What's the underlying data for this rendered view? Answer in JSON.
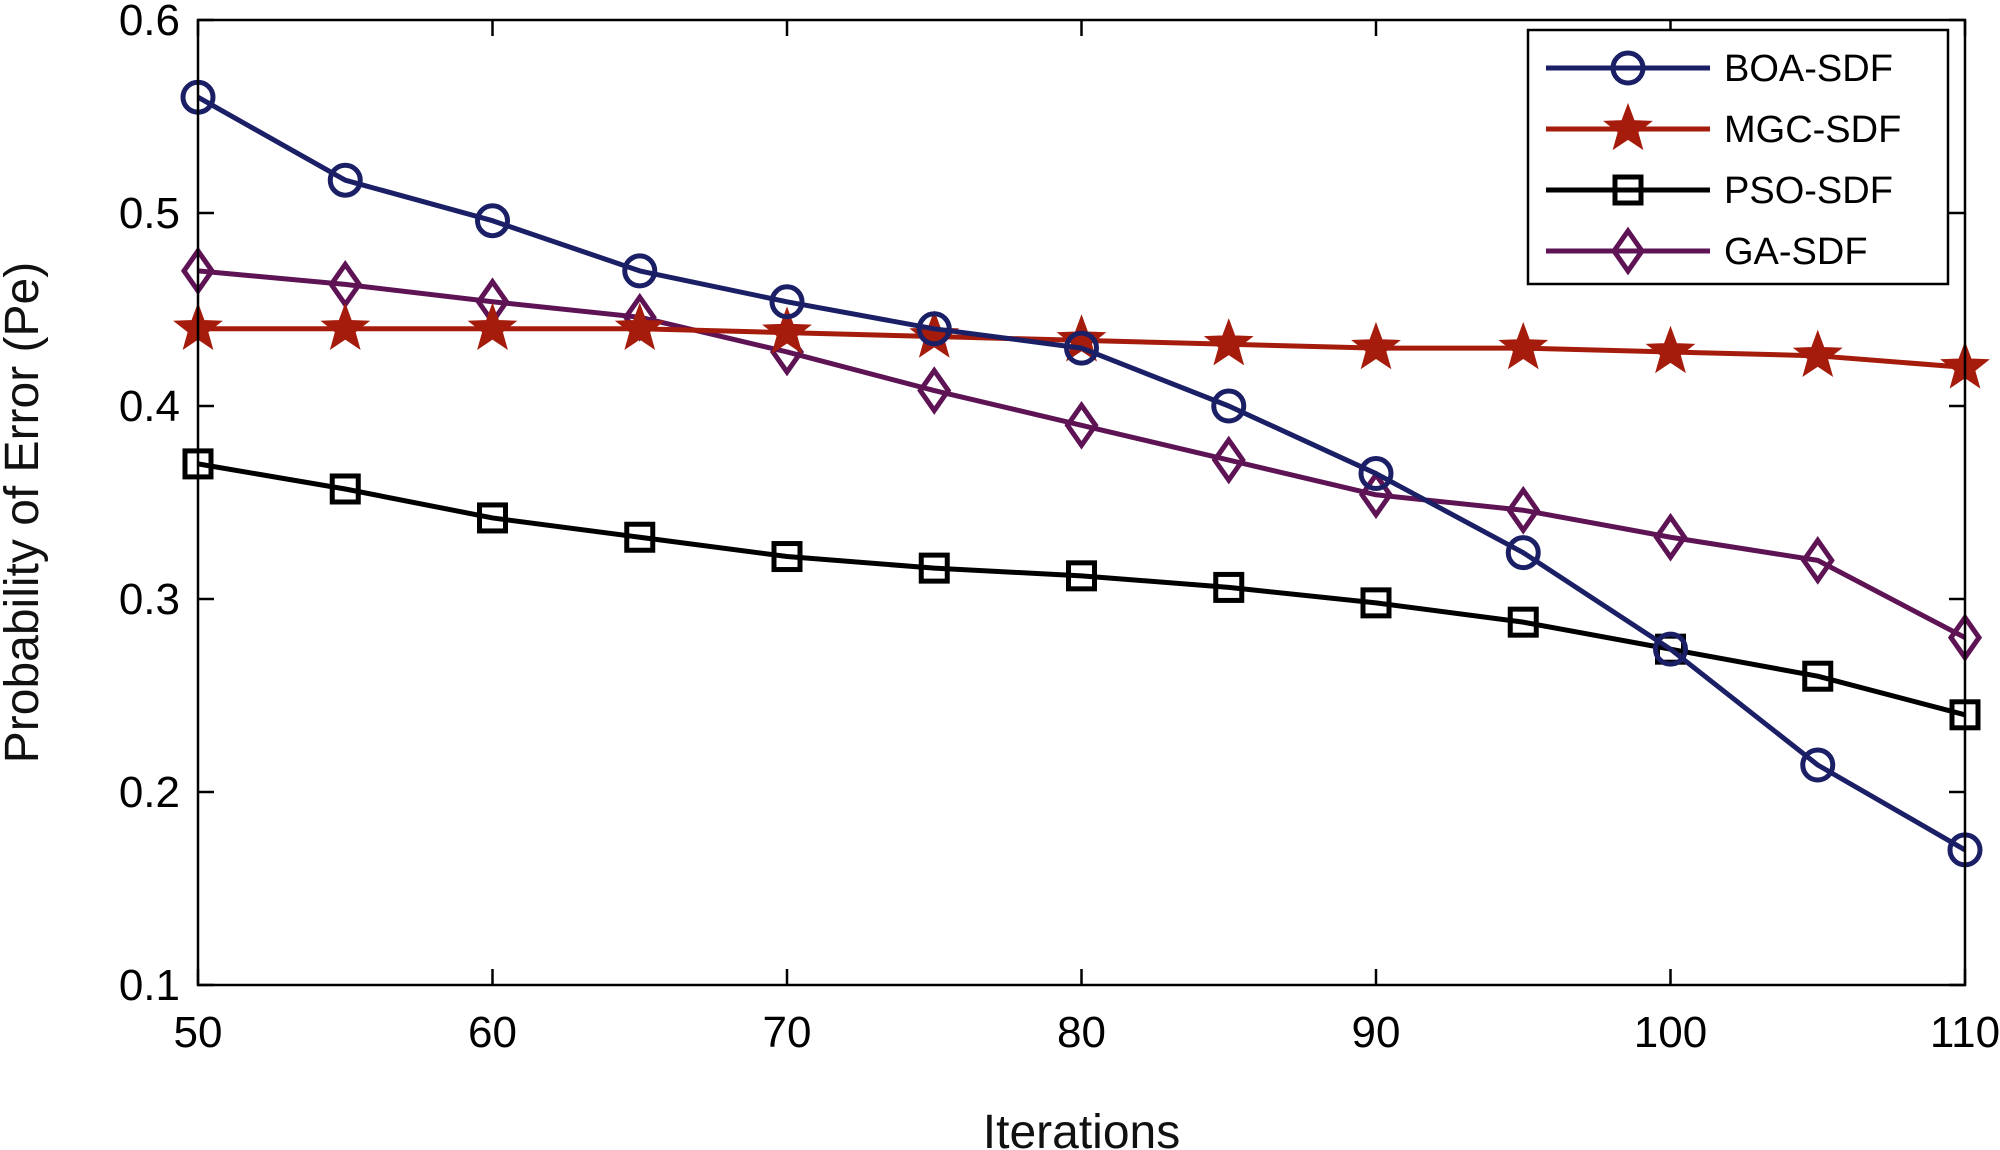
{
  "chart_data": {
    "type": "line",
    "title": "",
    "xlabel": "Iterations",
    "ylabel": "Probability of Error (Pe)",
    "xlim": [
      50,
      110
    ],
    "ylim": [
      0.1,
      0.6
    ],
    "x_ticks": [
      "50",
      "60",
      "70",
      "80",
      "90",
      "100",
      "110"
    ],
    "y_ticks": [
      "0.1",
      "0.2",
      "0.3",
      "0.4",
      "0.5",
      "0.6"
    ],
    "grid": false,
    "legend_position": "top-right",
    "x": [
      50,
      55,
      60,
      65,
      70,
      75,
      80,
      85,
      90,
      95,
      100,
      105,
      110
    ],
    "series": [
      {
        "name": "BOA-SDF",
        "color": "#1a1f66",
        "marker": "circle",
        "values": [
          0.56,
          0.517,
          0.496,
          0.47,
          0.454,
          0.44,
          0.43,
          0.4,
          0.365,
          0.324,
          0.274,
          0.214,
          0.17
        ]
      },
      {
        "name": "MGC-SDF",
        "color": "#a51c0c",
        "marker": "star",
        "values": [
          0.44,
          0.44,
          0.44,
          0.44,
          0.438,
          0.436,
          0.434,
          0.432,
          0.43,
          0.43,
          0.428,
          0.426,
          0.42
        ]
      },
      {
        "name": "PSO-SDF",
        "color": "#000000",
        "marker": "square",
        "values": [
          0.37,
          0.357,
          0.342,
          0.332,
          0.322,
          0.316,
          0.312,
          0.306,
          0.298,
          0.288,
          0.274,
          0.26,
          0.24
        ]
      },
      {
        "name": "GA-SDF",
        "color": "#5e1454",
        "marker": "diamond",
        "values": [
          0.47,
          0.463,
          0.454,
          0.446,
          0.428,
          0.408,
          0.39,
          0.372,
          0.354,
          0.346,
          0.332,
          0.32,
          0.28
        ]
      }
    ]
  }
}
